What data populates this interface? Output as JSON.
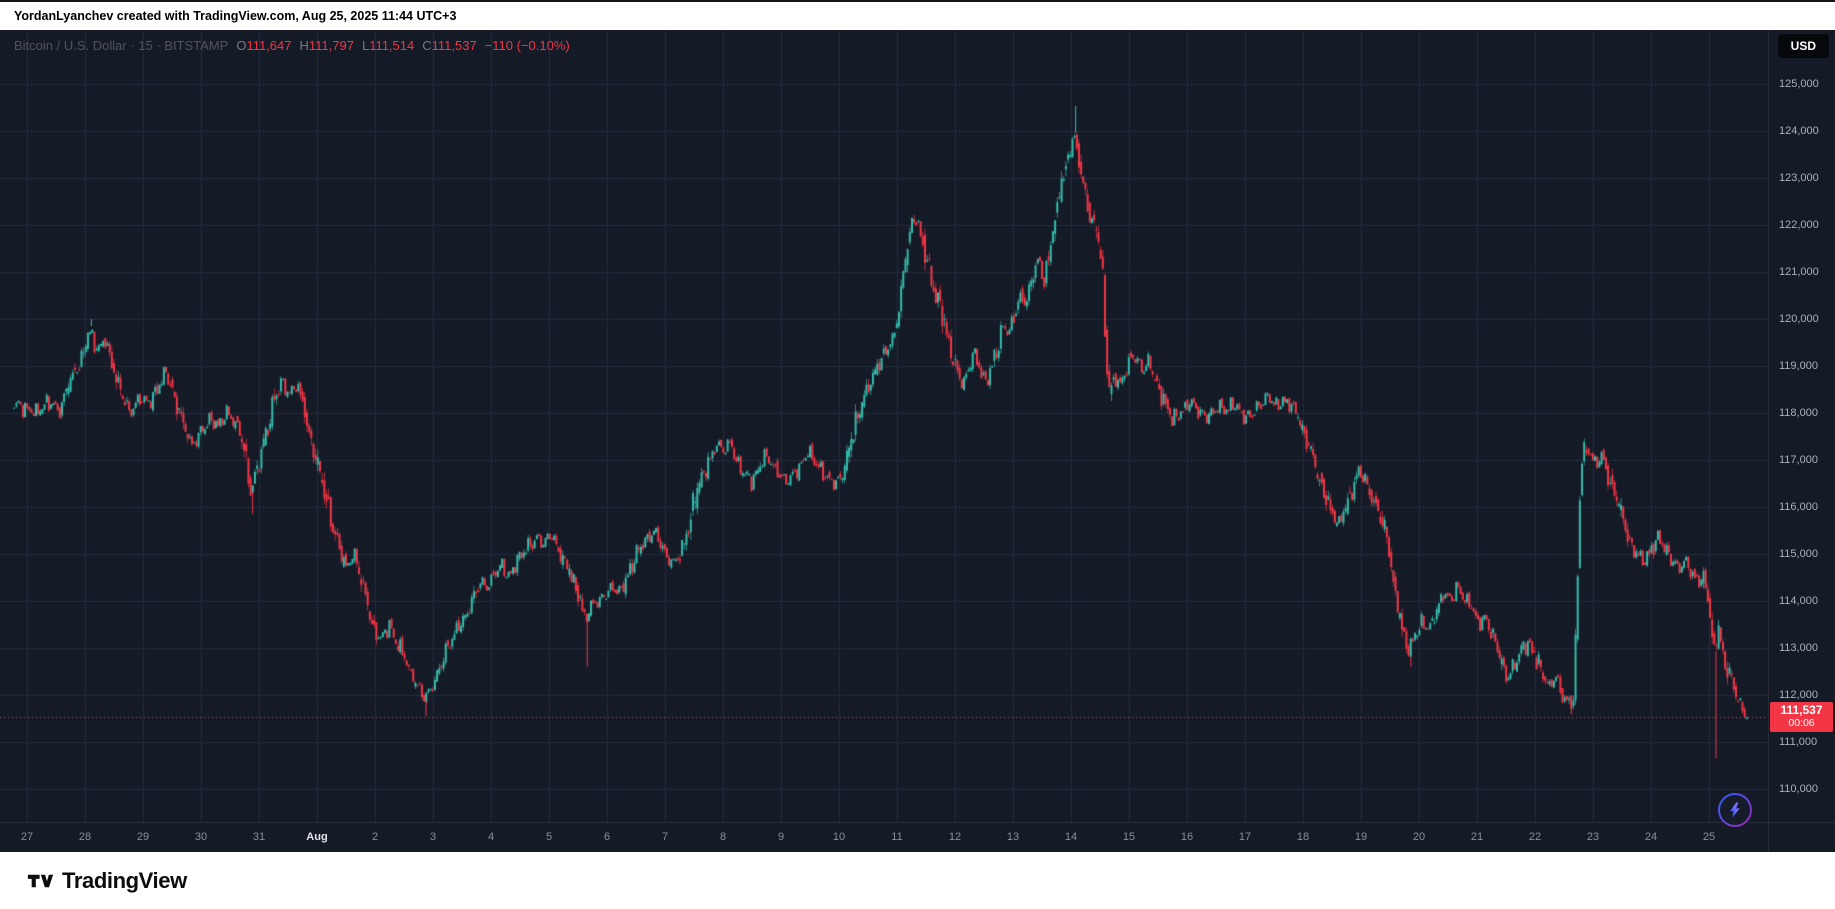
{
  "attribution": {
    "text": "YordanLyanchev created with TradingView.com, Aug 25, 2025 11:44 UTC+3"
  },
  "header": {
    "symbol_title": "Bitcoin / U.S. Dollar · 15 · BITSTAMP",
    "ohlc": {
      "o_label": "O",
      "open": "111,647",
      "h_label": "H",
      "high": "111,797",
      "l_label": "L",
      "low": "111,514",
      "c_label": "C",
      "close": "111,537",
      "change": "−110 (−0.10%)"
    }
  },
  "price_axis_button": {
    "label": "USD"
  },
  "last_price_badge": {
    "price": "111,537",
    "countdown": "00:06"
  },
  "footer": {
    "brand": "TradingView"
  },
  "colors": {
    "background": "#151a27",
    "grid": "#232a3a",
    "up": "#33bdab",
    "down": "#f23645",
    "axis_text": "#aab0bc",
    "badge_bg": "#f23645",
    "boost_accent": "#7b61ff"
  },
  "chart_data": {
    "type": "candlestick",
    "symbol": "Bitcoin / U.S. Dollar",
    "exchange": "BITSTAMP",
    "interval_minutes": 15,
    "last_price": 111537,
    "countdown": "00:06",
    "ohlc_current": {
      "open": 111647,
      "high": 111797,
      "low": 111514,
      "close": 111537,
      "change": -110,
      "change_pct": -0.1
    },
    "y_axis": {
      "min": 110000,
      "max": 125000,
      "step": 1000,
      "unit": "USD",
      "grid": true
    },
    "x_axis": {
      "unit": "day",
      "labels": [
        {
          "label": "27"
        },
        {
          "label": "28"
        },
        {
          "label": "29"
        },
        {
          "label": "30"
        },
        {
          "label": "31"
        },
        {
          "label": "Aug",
          "major": true
        },
        {
          "label": "2"
        },
        {
          "label": "3"
        },
        {
          "label": "4"
        },
        {
          "label": "5"
        },
        {
          "label": "6"
        },
        {
          "label": "7"
        },
        {
          "label": "8"
        },
        {
          "label": "9"
        },
        {
          "label": "10"
        },
        {
          "label": "11"
        },
        {
          "label": "12"
        },
        {
          "label": "13"
        },
        {
          "label": "14"
        },
        {
          "label": "15"
        },
        {
          "label": "16"
        },
        {
          "label": "17"
        },
        {
          "label": "18"
        },
        {
          "label": "19"
        },
        {
          "label": "20"
        },
        {
          "label": "21"
        },
        {
          "label": "22"
        },
        {
          "label": "23"
        },
        {
          "label": "24"
        },
        {
          "label": "25"
        }
      ]
    },
    "path": [
      [
        -0.22,
        118200
      ],
      [
        0.0,
        118100
      ],
      [
        0.2,
        118000
      ],
      [
        0.4,
        118250
      ],
      [
        0.61,
        118050
      ],
      [
        0.77,
        118700
      ],
      [
        0.97,
        119100
      ],
      [
        1.11,
        119750
      ],
      [
        1.26,
        119300
      ],
      [
        1.38,
        119600
      ],
      [
        1.52,
        119000
      ],
      [
        1.66,
        118400
      ],
      [
        1.82,
        118000
      ],
      [
        1.98,
        118350
      ],
      [
        2.13,
        118200
      ],
      [
        2.29,
        118500
      ],
      [
        2.43,
        118900
      ],
      [
        2.59,
        118300
      ],
      [
        2.73,
        117800
      ],
      [
        2.87,
        117300
      ],
      [
        3.04,
        117600
      ],
      [
        3.2,
        117900
      ],
      [
        3.34,
        117700
      ],
      [
        3.48,
        118000
      ],
      [
        3.64,
        117800
      ],
      [
        3.79,
        117200
      ],
      [
        3.89,
        116350
      ],
      [
        4.01,
        116800
      ],
      [
        4.15,
        117500
      ],
      [
        4.29,
        118200
      ],
      [
        4.41,
        118650
      ],
      [
        4.55,
        118400
      ],
      [
        4.7,
        118600
      ],
      [
        4.82,
        118100
      ],
      [
        4.94,
        117400
      ],
      [
        5.06,
        116800
      ],
      [
        5.18,
        116300
      ],
      [
        5.3,
        115600
      ],
      [
        5.43,
        115100
      ],
      [
        5.55,
        114700
      ],
      [
        5.67,
        115000
      ],
      [
        5.79,
        114500
      ],
      [
        5.91,
        113900
      ],
      [
        6.03,
        113400
      ],
      [
        6.15,
        113200
      ],
      [
        6.28,
        113500
      ],
      [
        6.4,
        113100
      ],
      [
        6.52,
        112900
      ],
      [
        6.64,
        112500
      ],
      [
        6.76,
        112200
      ],
      [
        6.88,
        111950
      ],
      [
        7.0,
        112100
      ],
      [
        7.13,
        112500
      ],
      [
        7.25,
        112900
      ],
      [
        7.37,
        113200
      ],
      [
        7.49,
        113500
      ],
      [
        7.61,
        113700
      ],
      [
        7.73,
        114100
      ],
      [
        7.85,
        114400
      ],
      [
        7.97,
        114300
      ],
      [
        8.1,
        114600
      ],
      [
        8.22,
        114750
      ],
      [
        8.34,
        114500
      ],
      [
        8.46,
        114800
      ],
      [
        8.58,
        115000
      ],
      [
        8.7,
        115200
      ],
      [
        8.83,
        115350
      ],
      [
        8.95,
        115200
      ],
      [
        9.07,
        115450
      ],
      [
        9.19,
        115100
      ],
      [
        9.31,
        114800
      ],
      [
        9.43,
        114550
      ],
      [
        9.55,
        114100
      ],
      [
        9.66,
        113600
      ],
      [
        9.76,
        113900
      ],
      [
        9.88,
        114000
      ],
      [
        10.0,
        114100
      ],
      [
        10.12,
        114300
      ],
      [
        10.24,
        114200
      ],
      [
        10.36,
        114450
      ],
      [
        10.48,
        114800
      ],
      [
        10.6,
        115100
      ],
      [
        10.72,
        115300
      ],
      [
        10.85,
        115500
      ],
      [
        10.97,
        115200
      ],
      [
        11.09,
        114900
      ],
      [
        11.21,
        114800
      ],
      [
        11.33,
        115100
      ],
      [
        11.45,
        115600
      ],
      [
        11.57,
        116300
      ],
      [
        11.69,
        116700
      ],
      [
        11.81,
        117000
      ],
      [
        11.93,
        117350
      ],
      [
        12.05,
        117200
      ],
      [
        12.17,
        117400
      ],
      [
        12.29,
        116900
      ],
      [
        12.41,
        116700
      ],
      [
        12.53,
        116550
      ],
      [
        12.65,
        116800
      ],
      [
        12.77,
        117100
      ],
      [
        12.89,
        116900
      ],
      [
        13.02,
        116700
      ],
      [
        13.14,
        116550
      ],
      [
        13.26,
        116700
      ],
      [
        13.38,
        116900
      ],
      [
        13.5,
        117200
      ],
      [
        13.62,
        116950
      ],
      [
        13.74,
        116750
      ],
      [
        13.86,
        116600
      ],
      [
        13.98,
        116500
      ],
      [
        14.11,
        116700
      ],
      [
        14.23,
        117300
      ],
      [
        14.35,
        117900
      ],
      [
        14.47,
        118300
      ],
      [
        14.59,
        118700
      ],
      [
        14.71,
        119000
      ],
      [
        14.83,
        119300
      ],
      [
        14.95,
        119500
      ],
      [
        15.07,
        120100
      ],
      [
        15.17,
        121200
      ],
      [
        15.27,
        121900
      ],
      [
        15.35,
        122200
      ],
      [
        15.45,
        121800
      ],
      [
        15.55,
        121300
      ],
      [
        15.66,
        120600
      ],
      [
        15.76,
        120400
      ],
      [
        15.86,
        119900
      ],
      [
        15.96,
        119300
      ],
      [
        16.06,
        119000
      ],
      [
        16.16,
        118600
      ],
      [
        16.26,
        118900
      ],
      [
        16.36,
        119300
      ],
      [
        16.46,
        118950
      ],
      [
        16.57,
        118650
      ],
      [
        16.67,
        119000
      ],
      [
        16.77,
        119400
      ],
      [
        16.87,
        119850
      ],
      [
        16.97,
        119700
      ],
      [
        17.07,
        120150
      ],
      [
        17.17,
        120500
      ],
      [
        17.27,
        120300
      ],
      [
        17.37,
        120900
      ],
      [
        17.47,
        121300
      ],
      [
        17.57,
        120800
      ],
      [
        17.67,
        121400
      ],
      [
        17.77,
        122200
      ],
      [
        17.87,
        122900
      ],
      [
        17.98,
        123400
      ],
      [
        18.08,
        123900
      ],
      [
        18.18,
        123400
      ],
      [
        18.28,
        122700
      ],
      [
        18.38,
        122100
      ],
      [
        18.48,
        121900
      ],
      [
        18.58,
        121000
      ],
      [
        18.68,
        118400
      ],
      [
        18.78,
        118800
      ],
      [
        18.88,
        118600
      ],
      [
        18.98,
        118900
      ],
      [
        19.08,
        119250
      ],
      [
        19.18,
        119100
      ],
      [
        19.28,
        118900
      ],
      [
        19.38,
        119100
      ],
      [
        19.48,
        118700
      ],
      [
        19.59,
        118400
      ],
      [
        19.69,
        118100
      ],
      [
        19.79,
        117850
      ],
      [
        19.89,
        117950
      ],
      [
        19.99,
        118100
      ],
      [
        20.11,
        118250
      ],
      [
        20.23,
        118050
      ],
      [
        20.35,
        117900
      ],
      [
        20.47,
        118000
      ],
      [
        20.59,
        118150
      ],
      [
        20.72,
        118050
      ],
      [
        20.84,
        118200
      ],
      [
        20.96,
        118000
      ],
      [
        21.08,
        117900
      ],
      [
        21.2,
        118050
      ],
      [
        21.32,
        118200
      ],
      [
        21.44,
        118350
      ],
      [
        21.56,
        118150
      ],
      [
        21.68,
        118250
      ],
      [
        21.8,
        118200
      ],
      [
        21.92,
        118000
      ],
      [
        22.04,
        117600
      ],
      [
        22.17,
        117200
      ],
      [
        22.29,
        116700
      ],
      [
        22.41,
        116300
      ],
      [
        22.53,
        115900
      ],
      [
        22.65,
        115600
      ],
      [
        22.77,
        116000
      ],
      [
        22.89,
        116350
      ],
      [
        23.01,
        116800
      ],
      [
        23.13,
        116500
      ],
      [
        23.25,
        116150
      ],
      [
        23.37,
        115800
      ],
      [
        23.49,
        115300
      ],
      [
        23.62,
        114200
      ],
      [
        23.74,
        113400
      ],
      [
        23.86,
        112950
      ],
      [
        23.98,
        113300
      ],
      [
        24.1,
        113550
      ],
      [
        24.22,
        113400
      ],
      [
        24.34,
        113800
      ],
      [
        24.46,
        114200
      ],
      [
        24.58,
        114000
      ],
      [
        24.7,
        114300
      ],
      [
        24.82,
        114050
      ],
      [
        24.94,
        113900
      ],
      [
        25.06,
        113500
      ],
      [
        25.18,
        113650
      ],
      [
        25.3,
        113250
      ],
      [
        25.43,
        112800
      ],
      [
        25.55,
        112350
      ],
      [
        25.67,
        112600
      ],
      [
        25.79,
        112950
      ],
      [
        25.91,
        113100
      ],
      [
        26.03,
        112850
      ],
      [
        26.15,
        112500
      ],
      [
        26.27,
        112150
      ],
      [
        26.39,
        112400
      ],
      [
        26.51,
        112000
      ],
      [
        26.63,
        111800
      ],
      [
        26.71,
        112000
      ],
      [
        26.77,
        114500
      ],
      [
        26.83,
        117000
      ],
      [
        26.95,
        117250
      ],
      [
        27.07,
        116900
      ],
      [
        27.19,
        117100
      ],
      [
        27.32,
        116600
      ],
      [
        27.44,
        116200
      ],
      [
        27.56,
        115700
      ],
      [
        27.68,
        115200
      ],
      [
        27.8,
        115000
      ],
      [
        27.92,
        114850
      ],
      [
        28.04,
        115100
      ],
      [
        28.16,
        115350
      ],
      [
        28.28,
        115100
      ],
      [
        28.4,
        114850
      ],
      [
        28.52,
        114700
      ],
      [
        28.64,
        114850
      ],
      [
        28.76,
        114550
      ],
      [
        28.88,
        114400
      ],
      [
        28.96,
        114550
      ],
      [
        29.04,
        113800
      ],
      [
        29.12,
        112900
      ],
      [
        29.2,
        113400
      ],
      [
        29.28,
        112900
      ],
      [
        29.36,
        112500
      ],
      [
        29.45,
        112200
      ],
      [
        29.53,
        111900
      ],
      [
        29.61,
        111700
      ],
      [
        29.69,
        111537
      ]
    ],
    "wick_extremes": [
      {
        "t": 1.11,
        "price": 120000,
        "side": "high"
      },
      {
        "t": 3.89,
        "price": 115850,
        "side": "low"
      },
      {
        "t": 6.88,
        "price": 111550,
        "side": "low"
      },
      {
        "t": 9.66,
        "price": 112600,
        "side": "low"
      },
      {
        "t": 18.08,
        "price": 124533,
        "side": "high"
      },
      {
        "t": 23.86,
        "price": 112600,
        "side": "low"
      },
      {
        "t": 26.63,
        "price": 111600,
        "side": "low"
      },
      {
        "t": 29.12,
        "price": 110650,
        "side": "low"
      }
    ]
  }
}
